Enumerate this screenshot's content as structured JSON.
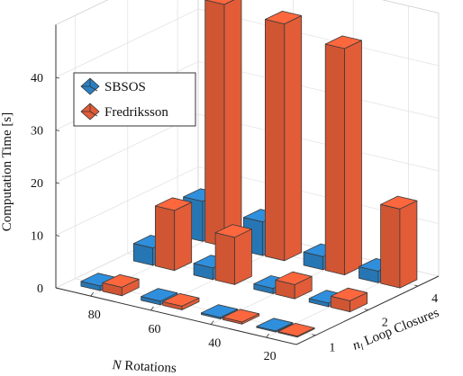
{
  "chart_data": {
    "type": "bar3d",
    "ylabel": "Computation Time [s]",
    "xlabel": "N Rotations",
    "zlabel_var": "n",
    "zlabel_sub": "l",
    "zlabel_rest": "Loop Closures",
    "x_ticks": [
      "80",
      "60",
      "40",
      "20"
    ],
    "n_ticks": [
      "1",
      "2",
      "4"
    ],
    "y_ticks": [
      "0",
      "10",
      "20",
      "30",
      "40"
    ],
    "ylim": [
      0,
      50
    ],
    "legend_position": "top-left",
    "series": [
      {
        "name": "SBSOS",
        "color": "#2a80c4",
        "values": {
          "80": [
            0.9,
            3.3,
            7.6
          ],
          "60": [
            0.7,
            2.2,
            6.4
          ],
          "40": [
            0.3,
            1.0,
            2.5
          ],
          "20": [
            0.2,
            0.7,
            2.2
          ]
        }
      },
      {
        "name": "Fredriksson",
        "color": "#e25c37",
        "values": {
          "80": [
            1.6,
            11.4,
            46.0
          ],
          "60": [
            0.7,
            9.0,
            45.0
          ],
          "40": [
            0.4,
            2.7,
            43.0
          ],
          "20": [
            0.2,
            2.1,
            15.0
          ]
        }
      }
    ]
  }
}
